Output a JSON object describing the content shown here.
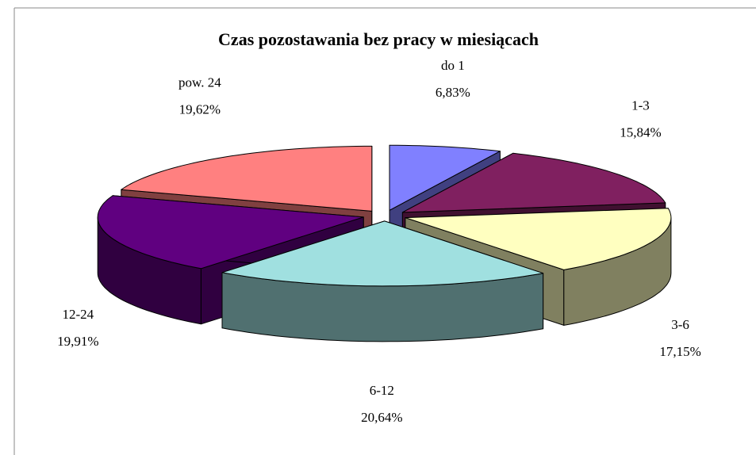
{
  "chart_data": {
    "type": "pie",
    "title": "Czas pozostawania bez pracy w miesiącach",
    "categories": [
      "do 1",
      "1-3",
      "3-6",
      "6-12",
      "12-24",
      "pow. 24"
    ],
    "values": [
      6.83,
      15.84,
      17.15,
      20.64,
      19.91,
      19.62
    ],
    "value_labels": [
      "6,83%",
      "15,84%",
      "17,15%",
      "20,64%",
      "19,91%",
      "19,62%"
    ],
    "colors": [
      "#8080ff",
      "#802060",
      "#ffffc0",
      "#a0e0e0",
      "#600080",
      "#ff8080"
    ]
  }
}
